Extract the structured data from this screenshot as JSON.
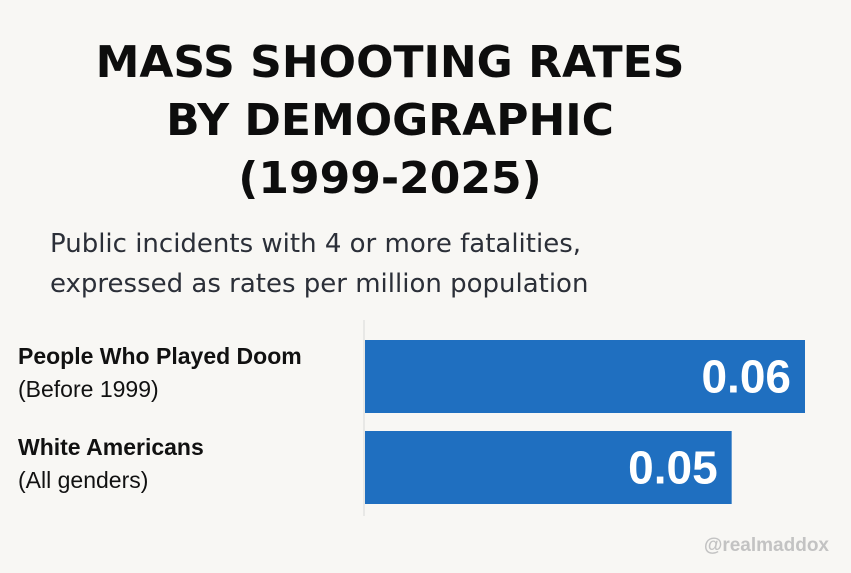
{
  "title": {
    "line1": "MASS SHOOTING RATES",
    "line2": "BY DEMOGRAPHIC",
    "line3": "(1999-2025)"
  },
  "subtitle": {
    "line1": "Public incidents with 4 or more fatalities,",
    "line2": "expressed as rates per million population"
  },
  "watermark": "@realmaddox",
  "colors": {
    "bar": "#1f6fc0",
    "bar_label": "#ffffff",
    "axis": "#d9d9d9"
  },
  "chart_data": {
    "type": "bar",
    "orientation": "horizontal",
    "title": "MASS SHOOTING RATES BY DEMOGRAPHIC (1999-2025)",
    "subtitle": "Public incidents with 4 or more fatalities, expressed as rates per million population",
    "xlabel": "",
    "ylabel": "",
    "xlim": [
      0,
      0.066
    ],
    "grid": false,
    "categories": [
      {
        "label": "People Who Played Doom",
        "sublabel": "(Before 1999)"
      },
      {
        "label": "White Americans",
        "sublabel": "(All genders)"
      }
    ],
    "values": [
      0.06,
      0.05
    ],
    "value_labels": [
      "0.06",
      "0.05"
    ]
  }
}
